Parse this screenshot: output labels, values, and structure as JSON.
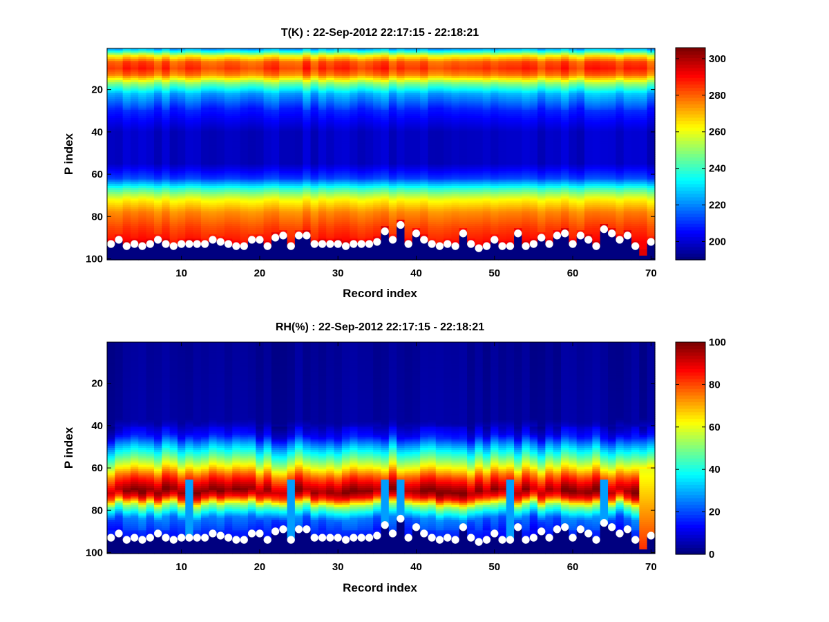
{
  "figure": {
    "background": "#ffffff",
    "colormap": "jet",
    "marker_color": "#ffffff"
  },
  "chart_data": [
    {
      "type": "heatmap",
      "title": "T(K) : 22-Sep-2012 22:17:15 - 22:18:21",
      "xlabel": "Record index",
      "ylabel": "P index",
      "xlim": [
        0.5,
        70.5
      ],
      "ylim": [
        0.5,
        100.5
      ],
      "y_reversed": true,
      "x_ticks": [
        10,
        20,
        30,
        40,
        50,
        60,
        70
      ],
      "y_ticks": [
        20,
        40,
        60,
        80,
        100
      ],
      "colorbar": {
        "range": [
          190,
          306
        ],
        "ticks": [
          200,
          220,
          240,
          260,
          280,
          300
        ],
        "colormap": "jet"
      },
      "profile_description": {
        "value_at_top_rows": 225,
        "warm_band_center_row": 10,
        "warm_band_value": 285,
        "coldest_rows": [
          40,
          55
        ],
        "coldest_value": 197,
        "surface_value": 290,
        "below_surface_value": 190
      },
      "surface_markers": {
        "x": [
          1,
          2,
          3,
          4,
          5,
          6,
          7,
          8,
          9,
          10,
          11,
          12,
          13,
          14,
          15,
          16,
          17,
          18,
          19,
          20,
          21,
          22,
          23,
          24,
          25,
          26,
          27,
          28,
          29,
          30,
          31,
          32,
          33,
          34,
          35,
          36,
          37,
          38,
          39,
          40,
          41,
          42,
          43,
          44,
          45,
          46,
          47,
          48,
          49,
          50,
          51,
          52,
          53,
          54,
          55,
          56,
          57,
          58,
          59,
          60,
          61,
          62,
          63,
          64,
          65,
          66,
          67,
          68,
          69,
          70
        ],
        "y": [
          93,
          91,
          94,
          93,
          94,
          93,
          91,
          93,
          94,
          93,
          93,
          93,
          93,
          91,
          92,
          93,
          94,
          94,
          91,
          91,
          94,
          90,
          89,
          94,
          89,
          89,
          93,
          93,
          93,
          93,
          94,
          93,
          93,
          93,
          92,
          87,
          91,
          84,
          93,
          88,
          91,
          93,
          94,
          93,
          94,
          88,
          93,
          95,
          94,
          91,
          94,
          94,
          88,
          94,
          93,
          90,
          93,
          89,
          88,
          93,
          89,
          91,
          94,
          86,
          88,
          91,
          89,
          94,
          null,
          92
        ]
      }
    },
    {
      "type": "heatmap",
      "title": "RH(%) : 22-Sep-2012 22:17:15 - 22:18:21",
      "xlabel": "Record index",
      "ylabel": "P index",
      "xlim": [
        0.5,
        70.5
      ],
      "ylim": [
        0.5,
        100.5
      ],
      "y_reversed": true,
      "x_ticks": [
        10,
        20,
        30,
        40,
        50,
        60,
        70
      ],
      "y_ticks": [
        20,
        40,
        60,
        80,
        100
      ],
      "colorbar": {
        "range": [
          0,
          100
        ],
        "ticks": [
          0,
          20,
          40,
          60,
          80,
          100
        ],
        "colormap": "jet"
      },
      "profile_description": {
        "dry_rows": [
          1,
          38
        ],
        "moist_band_start_row": 50,
        "peak_row": 71,
        "peak_value": 97,
        "below_band_value": 15,
        "below_surface_value": 0
      },
      "surface_markers": {
        "x": [
          1,
          2,
          3,
          4,
          5,
          6,
          7,
          8,
          9,
          10,
          11,
          12,
          13,
          14,
          15,
          16,
          17,
          18,
          19,
          20,
          21,
          22,
          23,
          24,
          25,
          26,
          27,
          28,
          29,
          30,
          31,
          32,
          33,
          34,
          35,
          36,
          37,
          38,
          39,
          40,
          41,
          42,
          43,
          44,
          45,
          46,
          47,
          48,
          49,
          50,
          51,
          52,
          53,
          54,
          55,
          56,
          57,
          58,
          59,
          60,
          61,
          62,
          63,
          64,
          65,
          66,
          67,
          68,
          69,
          70
        ],
        "y": [
          93,
          91,
          94,
          93,
          94,
          93,
          91,
          93,
          94,
          93,
          93,
          93,
          93,
          91,
          92,
          93,
          94,
          94,
          91,
          91,
          94,
          90,
          89,
          94,
          89,
          89,
          93,
          93,
          93,
          93,
          94,
          93,
          93,
          93,
          92,
          87,
          91,
          84,
          93,
          88,
          91,
          93,
          94,
          93,
          94,
          88,
          93,
          95,
          94,
          91,
          94,
          94,
          88,
          94,
          93,
          90,
          93,
          89,
          88,
          93,
          89,
          91,
          94,
          86,
          88,
          91,
          89,
          94,
          null,
          92
        ]
      }
    }
  ]
}
